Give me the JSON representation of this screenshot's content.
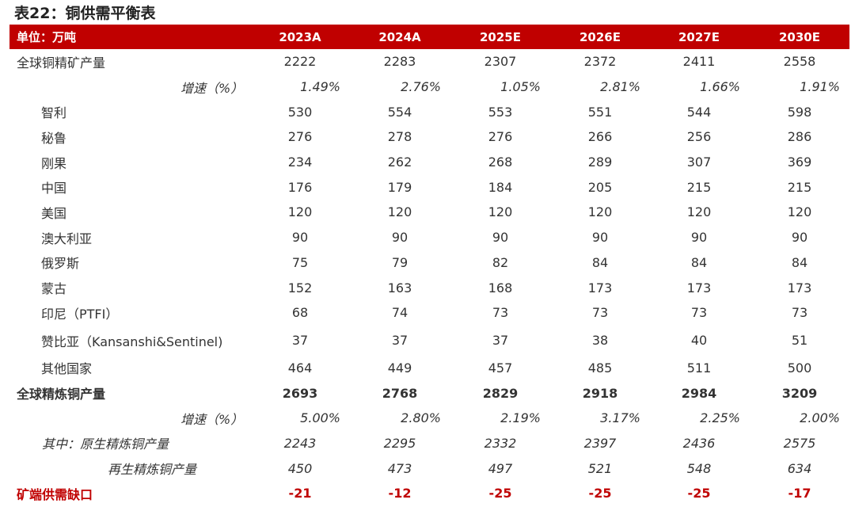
{
  "title": "表22：铜供需平衡表",
  "header": {
    "unit_label": "单位：万吨",
    "years": [
      "2023A",
      "2024A",
      "2025E",
      "2026E",
      "2027E",
      "2030E"
    ]
  },
  "rows": [
    {
      "label": "全球铜精矿产量",
      "values": [
        "2222",
        "2283",
        "2307",
        "2372",
        "2411",
        "2558"
      ]
    },
    {
      "label": "增速（%）",
      "values": [
        "1.49%",
        "2.76%",
        "1.05%",
        "2.81%",
        "1.66%",
        "1.91%"
      ]
    },
    {
      "label": "智利",
      "values": [
        "530",
        "554",
        "553",
        "551",
        "544",
        "598"
      ]
    },
    {
      "label": "秘鲁",
      "values": [
        "276",
        "278",
        "276",
        "266",
        "256",
        "286"
      ]
    },
    {
      "label": "刚果",
      "values": [
        "234",
        "262",
        "268",
        "289",
        "307",
        "369"
      ]
    },
    {
      "label": "中国",
      "values": [
        "176",
        "179",
        "184",
        "205",
        "215",
        "215"
      ]
    },
    {
      "label": "美国",
      "values": [
        "120",
        "120",
        "120",
        "120",
        "120",
        "120"
      ]
    },
    {
      "label": "澳大利亚",
      "values": [
        "90",
        "90",
        "90",
        "90",
        "90",
        "90"
      ]
    },
    {
      "label": "俄罗斯",
      "values": [
        "75",
        "79",
        "82",
        "84",
        "84",
        "84"
      ]
    },
    {
      "label": "蒙古",
      "values": [
        "152",
        "163",
        "168",
        "173",
        "173",
        "173"
      ]
    },
    {
      "label": "印尼（PTFI）",
      "values": [
        "68",
        "74",
        "73",
        "73",
        "73",
        "73"
      ]
    },
    {
      "label": "赞比亚（Kansanshi&Sentinel)",
      "values": [
        "37",
        "37",
        "37",
        "38",
        "40",
        "51"
      ]
    },
    {
      "label": "其他国家",
      "values": [
        "464",
        "449",
        "457",
        "485",
        "511",
        "500"
      ]
    },
    {
      "label": "全球精炼铜产量",
      "values": [
        "2693",
        "2768",
        "2829",
        "2918",
        "2984",
        "3209"
      ]
    },
    {
      "label": "增速（%）",
      "values": [
        "5.00%",
        "2.80%",
        "2.19%",
        "3.17%",
        "2.25%",
        "2.00%"
      ]
    },
    {
      "label": "其中：原生精炼铜产量",
      "values": [
        "2243",
        "2295",
        "2332",
        "2397",
        "2436",
        "2575"
      ]
    },
    {
      "label": "再生精炼铜产量",
      "values": [
        "450",
        "473",
        "497",
        "521",
        "548",
        "634"
      ]
    },
    {
      "label": "矿端供需缺口",
      "values": [
        "-21",
        "-12",
        "-25",
        "-25",
        "-25",
        "-17"
      ]
    }
  ]
}
